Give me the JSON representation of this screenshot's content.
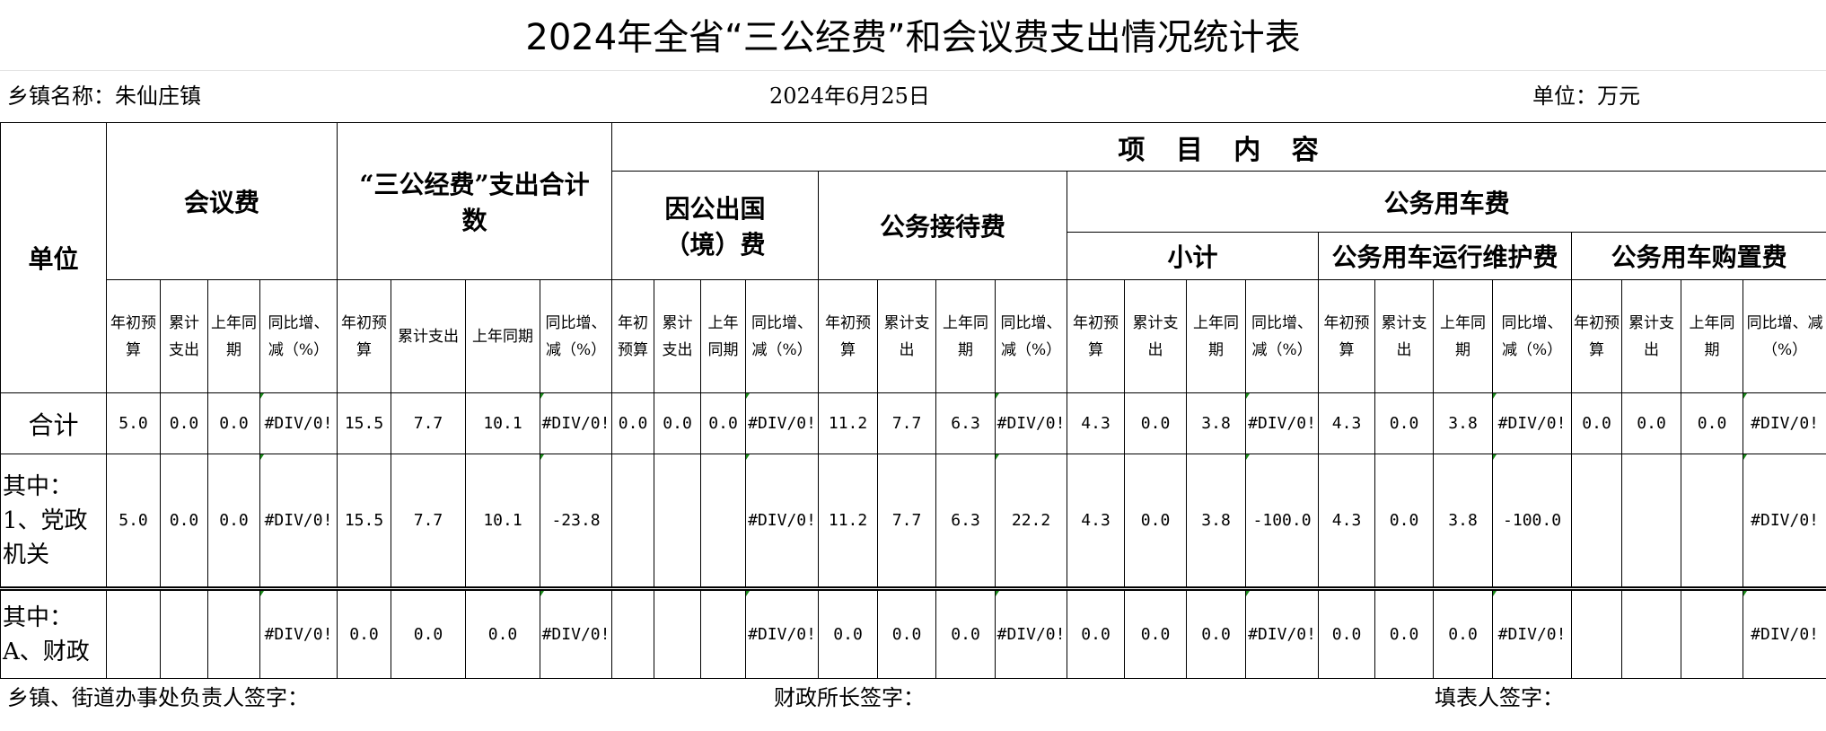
{
  "title": "2024年全省“三公经费”和会议费支出情况统计表",
  "info": {
    "town": "乡镇名称：朱仙庄镇",
    "date": "2024年6月25日",
    "unit": "单位：万元"
  },
  "header": {
    "unit_col": "单位",
    "meeting": "会议费",
    "sangong_total": "“三公经费”支出合计数",
    "project_content": "项 目 内 容",
    "abroad": "因公出国（境）费",
    "reception": "公务接待费",
    "car": "公务用车费",
    "car_subtotal": "小计",
    "car_maintenance": "公务用车运行维护费",
    "car_purchase": "公务用车购置费",
    "sub_columns": [
      "年初预算",
      "累计支出",
      "上年同期",
      "同比增、减（%）",
      "年初预算",
      "累计支出",
      "上年同期",
      "同比增、减（%）",
      "年初预算",
      "累计支出",
      "上年同期",
      "同比增、减（%）",
      "年初预算",
      "累计支出",
      "上年同期",
      "同比增、减（%）",
      "年初预算",
      "累计支出",
      "上年同期",
      "同比增、减（%）",
      "年初预算",
      "累计支出",
      "上年同期",
      "同比增、减（%）",
      "年初预算",
      "累计支出",
      "上年同期",
      "同比增、减（%）"
    ]
  },
  "rows": [
    {
      "label": "合计",
      "values": [
        "5.0",
        "0.0",
        "0.0",
        "#DIV/0!",
        "15.5",
        "7.7",
        "10.1",
        "#DIV/0!",
        "0.0",
        "0.0",
        "0.0",
        "#DIV/0!",
        "11.2",
        "7.7",
        "6.3",
        "#DIV/0!",
        "4.3",
        "0.0",
        "3.8",
        "#DIV/0!",
        "4.3",
        "0.0",
        "3.8",
        "#DIV/0!",
        "0.0",
        "0.0",
        "0.0",
        "#DIV/0!"
      ]
    },
    {
      "label": "其中：1、党政机关",
      "values": [
        "5.0",
        "0.0",
        "0.0",
        "#DIV/0!",
        "15.5",
        "7.7",
        "10.1",
        "-23.8",
        "",
        "",
        "",
        "#DIV/0!",
        "11.2",
        "7.7",
        "6.3",
        "22.2",
        "4.3",
        "0.0",
        "3.8",
        "-100.0",
        "4.3",
        "0.0",
        "3.8",
        "-100.0",
        "",
        "",
        "",
        "#DIV/0!"
      ]
    },
    {
      "label": "其中：A、财政",
      "values": [
        "",
        "",
        "",
        "#DIV/0!",
        "0.0",
        "0.0",
        "0.0",
        "#DIV/0!",
        "",
        "",
        "",
        "#DIV/0!",
        "0.0",
        "0.0",
        "0.0",
        "#DIV/0!",
        "0.0",
        "0.0",
        "0.0",
        "#DIV/0!",
        "0.0",
        "0.0",
        "0.0",
        "#DIV/0!",
        "",
        "",
        "",
        "#DIV/0!"
      ]
    }
  ],
  "footer": {
    "leader_sign": "乡镇、街道办事处负责人签字：",
    "finance_sign": "财政所长签字：",
    "filler_sign": "填表人签字："
  }
}
